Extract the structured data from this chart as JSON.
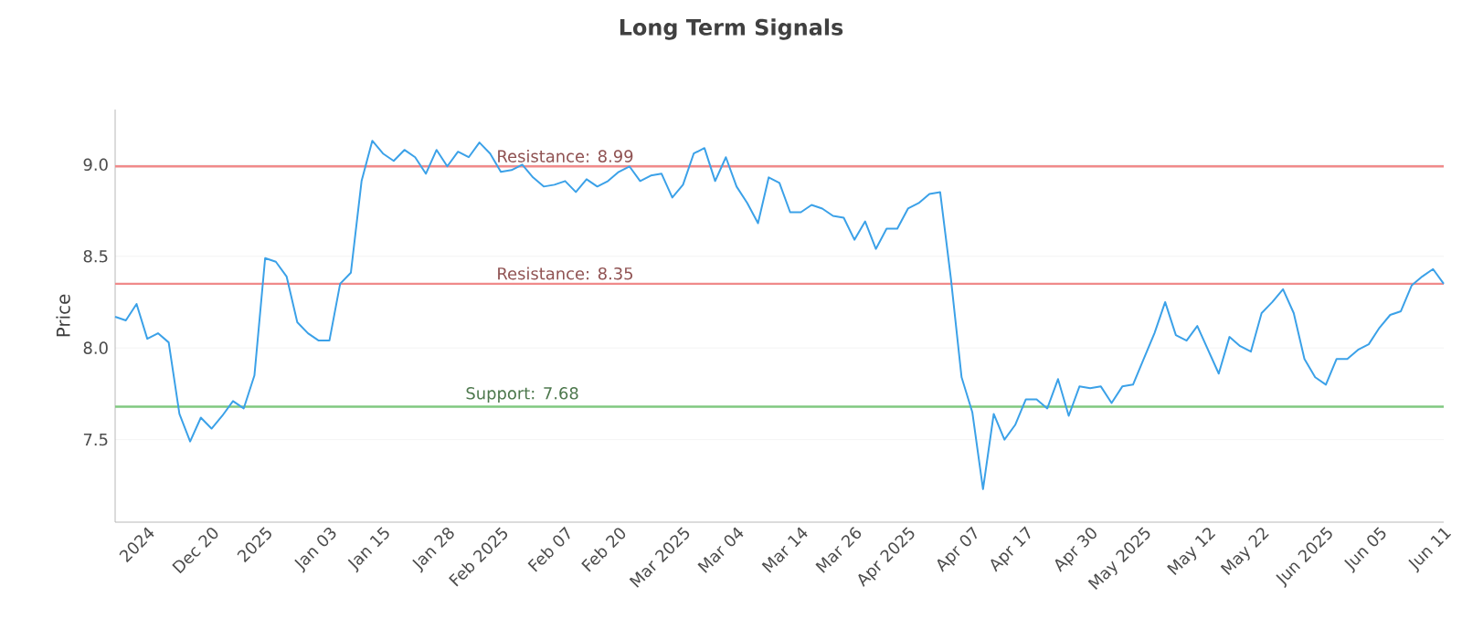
{
  "chart_data": {
    "type": "line",
    "title": "Long Term Signals",
    "ylabel": "Price",
    "categories": [
      null,
      null,
      null,
      "2024",
      null,
      null,
      null,
      null,
      null,
      "Dec 20",
      null,
      null,
      null,
      null,
      "2025",
      null,
      null,
      null,
      null,
      null,
      "Jan 03",
      null,
      null,
      null,
      null,
      "Jan 15",
      null,
      null,
      null,
      null,
      null,
      "Jan 28",
      null,
      null,
      null,
      null,
      "Feb 2025",
      null,
      null,
      null,
      null,
      null,
      "Feb 07",
      null,
      null,
      null,
      null,
      "Feb 20",
      null,
      null,
      null,
      null,
      null,
      "Mar 2025",
      null,
      null,
      null,
      null,
      "Mar 04",
      null,
      null,
      null,
      null,
      null,
      "Mar 14",
      null,
      null,
      null,
      null,
      "Mar 26",
      null,
      null,
      null,
      null,
      "Apr 2025",
      null,
      null,
      null,
      null,
      null,
      "Apr 07",
      null,
      null,
      null,
      null,
      "Apr 17",
      null,
      null,
      null,
      null,
      null,
      "Apr 30",
      null,
      null,
      null,
      null,
      "May 2025",
      null,
      null,
      null,
      null,
      null,
      "May 12",
      null,
      null,
      null,
      null,
      "May 22",
      null,
      null,
      null,
      null,
      null,
      "Jun 2025",
      null,
      null,
      null,
      null,
      "Jun 05",
      null,
      null,
      null,
      null,
      null,
      "Jun 11"
    ],
    "series": [
      {
        "color": "#3ba1e8",
        "values": [
          8.17,
          8.15,
          8.24,
          8.05,
          8.08,
          8.03,
          7.64,
          7.49,
          7.62,
          7.56,
          7.63,
          7.71,
          7.67,
          7.85,
          8.49,
          8.47,
          8.39,
          8.14,
          8.08,
          8.04,
          8.04,
          8.35,
          8.41,
          8.91,
          9.13,
          9.06,
          9.02,
          9.08,
          9.04,
          8.95,
          9.08,
          8.99,
          9.07,
          9.04,
          9.12,
          9.06,
          8.96,
          8.97,
          9.0,
          8.93,
          8.88,
          8.89,
          8.91,
          8.85,
          8.92,
          8.88,
          8.91,
          8.96,
          8.99,
          8.91,
          8.94,
          8.95,
          8.82,
          8.89,
          9.06,
          9.09,
          8.91,
          9.04,
          8.88,
          8.79,
          8.68,
          8.93,
          8.9,
          8.74,
          8.74,
          8.78,
          8.76,
          8.72,
          8.71,
          8.59,
          8.69,
          8.54,
          8.65,
          8.65,
          8.76,
          8.79,
          8.84,
          8.85,
          8.38,
          7.84,
          7.65,
          7.23,
          7.64,
          7.5,
          7.58,
          7.72,
          7.72,
          7.67,
          7.83,
          7.63,
          7.79,
          7.78,
          7.79,
          7.7,
          7.79,
          7.8,
          7.94,
          8.08,
          8.25,
          8.07,
          8.04,
          8.12,
          7.99,
          7.86,
          8.06,
          8.01,
          7.98,
          8.19,
          8.25,
          8.32,
          8.19,
          7.94,
          7.84,
          7.8,
          7.94,
          7.94,
          7.99,
          8.02,
          8.11,
          8.18,
          8.2,
          8.34,
          8.39,
          8.43,
          8.35
        ]
      }
    ],
    "ylim": [
      7.05,
      9.3
    ],
    "yticks": [
      {
        "value": 7.5,
        "label": "7.5"
      },
      {
        "value": 8.0,
        "label": "8.0"
      },
      {
        "value": 8.5,
        "label": "8.5"
      },
      {
        "value": 9.0,
        "label": "9.0"
      }
    ],
    "grid": "y",
    "marker": "none",
    "line_style": "solid",
    "ref_lines": [
      {
        "axis": "y",
        "value": 8.99,
        "label": "Resistance: 8.99",
        "color": "#f08a8a"
      },
      {
        "axis": "y",
        "value": 8.35,
        "label": "Resistance: 8.35",
        "color": "#f08a8a"
      },
      {
        "axis": "y",
        "value": 7.68,
        "label": "Support: 7.68",
        "color": "#80c880"
      }
    ]
  }
}
